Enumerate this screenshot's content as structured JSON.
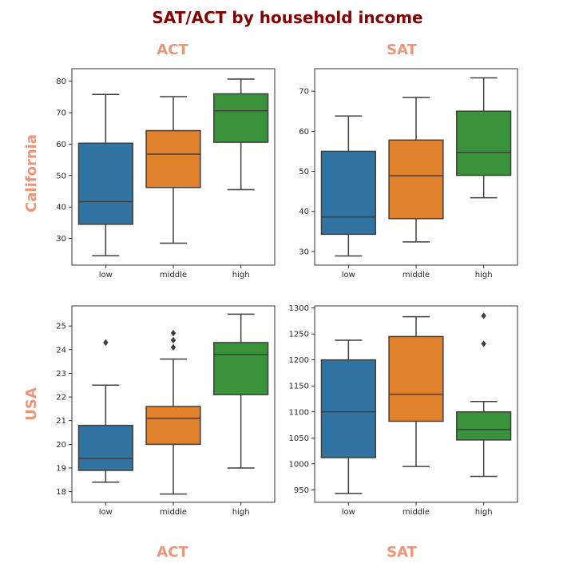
{
  "figure": {
    "title": "SAT/ACT by household income",
    "title_color": "#800000",
    "label_color": "#E9967A",
    "columns_top": [
      "ACT",
      "SAT"
    ],
    "columns_bottom": [
      "ACT",
      "SAT"
    ],
    "rows": [
      "California",
      "USA"
    ]
  },
  "chart_data": [
    {
      "type": "boxplot",
      "row": "California",
      "column": "ACT",
      "categories": [
        "low",
        "middle",
        "high"
      ],
      "colors": [
        "#3274A1",
        "#E1812C",
        "#3A923A"
      ],
      "ylim": [
        21.5,
        84
      ],
      "yticks": [
        30,
        40,
        50,
        60,
        70,
        80
      ],
      "boxes": [
        {
          "whisker_low": 24.5,
          "q1": 34.5,
          "median": 41.7,
          "q3": 60.3,
          "whisker_high": 75.8,
          "outliers": []
        },
        {
          "whisker_low": 28.5,
          "q1": 46.2,
          "median": 56.8,
          "q3": 64.3,
          "whisker_high": 75.1,
          "outliers": []
        },
        {
          "whisker_low": 45.5,
          "q1": 60.6,
          "median": 70.6,
          "q3": 76.0,
          "whisker_high": 80.7,
          "outliers": []
        }
      ]
    },
    {
      "type": "boxplot",
      "row": "California",
      "column": "SAT",
      "categories": [
        "low",
        "middle",
        "high"
      ],
      "colors": [
        "#3274A1",
        "#E1812C",
        "#3A923A"
      ],
      "ylim": [
        26.6,
        75.6
      ],
      "yticks": [
        30,
        40,
        50,
        60,
        70
      ],
      "boxes": [
        {
          "whisker_low": 28.9,
          "q1": 34.3,
          "median": 38.6,
          "q3": 55.0,
          "whisker_high": 63.8,
          "outliers": []
        },
        {
          "whisker_low": 32.4,
          "q1": 38.2,
          "median": 48.9,
          "q3": 57.8,
          "whisker_high": 68.4,
          "outliers": []
        },
        {
          "whisker_low": 43.4,
          "q1": 49.0,
          "median": 54.7,
          "q3": 65.0,
          "whisker_high": 73.3,
          "outliers": []
        }
      ]
    },
    {
      "type": "boxplot",
      "row": "USA",
      "column": "ACT",
      "categories": [
        "low",
        "middle",
        "high"
      ],
      "colors": [
        "#3274A1",
        "#E1812C",
        "#3A923A"
      ],
      "ylim": [
        17.55,
        25.85
      ],
      "yticks": [
        18,
        19,
        20,
        21,
        22,
        23,
        24,
        25
      ],
      "boxes": [
        {
          "whisker_low": 18.4,
          "q1": 18.9,
          "median": 19.4,
          "q3": 20.8,
          "whisker_high": 22.5,
          "outliers": [
            24.3
          ]
        },
        {
          "whisker_low": 17.9,
          "q1": 20.0,
          "median": 21.1,
          "q3": 21.6,
          "whisker_high": 23.6,
          "outliers": [
            24.1,
            24.4,
            24.7
          ]
        },
        {
          "whisker_low": 19.0,
          "q1": 22.1,
          "median": 23.8,
          "q3": 24.3,
          "whisker_high": 25.5,
          "outliers": []
        }
      ]
    },
    {
      "type": "boxplot",
      "row": "USA",
      "column": "SAT",
      "categories": [
        "low",
        "middle",
        "high"
      ],
      "colors": [
        "#3274A1",
        "#E1812C",
        "#3A923A"
      ],
      "ylim": [
        926,
        1304
      ],
      "yticks": [
        950,
        1000,
        1050,
        1100,
        1150,
        1200,
        1250,
        1300
      ],
      "boxes": [
        {
          "whisker_low": 943,
          "q1": 1012,
          "median": 1100,
          "q3": 1200,
          "whisker_high": 1238,
          "outliers": []
        },
        {
          "whisker_low": 995,
          "q1": 1082,
          "median": 1134,
          "q3": 1245,
          "whisker_high": 1283,
          "outliers": []
        },
        {
          "whisker_low": 976,
          "q1": 1046,
          "median": 1066,
          "q3": 1100,
          "whisker_high": 1120,
          "outliers": [
            1231,
            1285
          ]
        }
      ]
    }
  ]
}
